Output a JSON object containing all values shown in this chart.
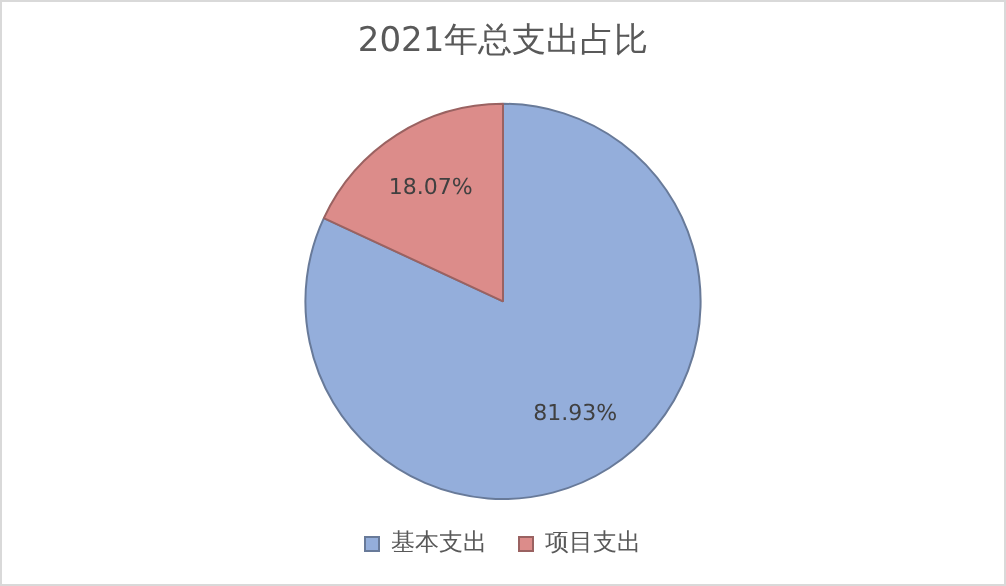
{
  "chart_data": {
    "type": "pie",
    "title": "2021年总支出占比",
    "categories": [
      "基本支出",
      "项目支出"
    ],
    "values": [
      81.93,
      18.07
    ],
    "colors": [
      "#94aedb",
      "#dc8c8a"
    ],
    "value_labels": [
      "81.93%",
      "18.07%"
    ],
    "legend": "bottom"
  }
}
